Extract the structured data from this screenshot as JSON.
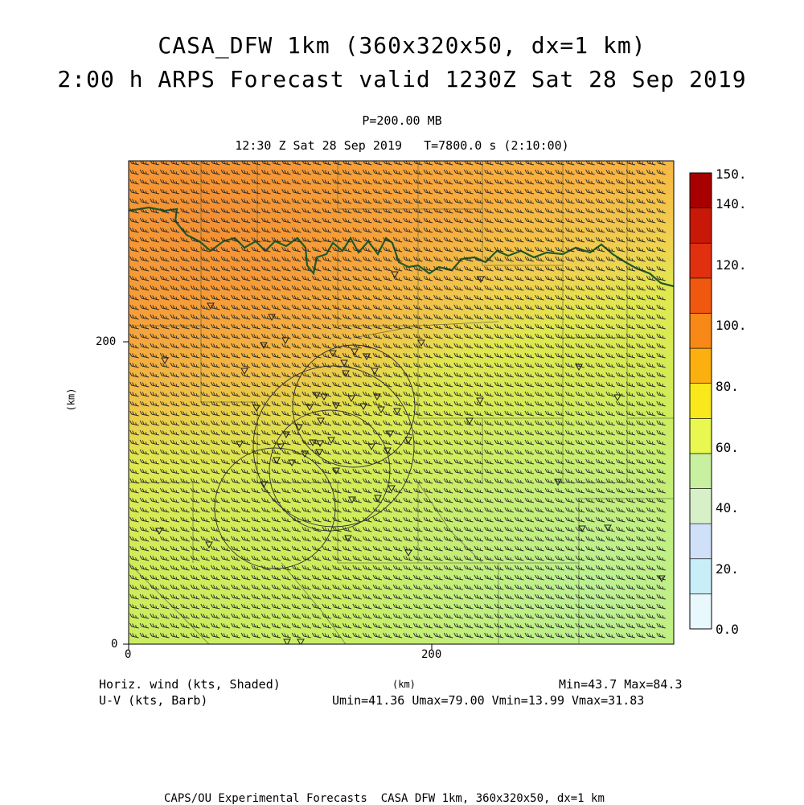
{
  "title": {
    "line1": "CASA_DFW 1km (360x320x50, dx=1 km)",
    "line2": "2:00 h ARPS Forecast valid 1230Z Sat 28 Sep 2019"
  },
  "subtitle": {
    "pressure": "P=200.00 MB",
    "time": "12:30 Z Sat 28 Sep 2019   T=7800.0 s (2:10:00)"
  },
  "axes": {
    "x_ticks": [
      "0",
      "200"
    ],
    "y_ticks": [
      "0",
      "200"
    ],
    "x_label": "(km)",
    "y_label": "(km)"
  },
  "colorbar": {
    "labels": [
      "150.",
      "140.",
      "120.",
      "100.",
      "80.",
      "60.",
      "40.",
      "20.",
      "0.0"
    ],
    "colors": [
      "#e8f8fc",
      "#c8eef8",
      "#cfe0f8",
      "#d8f0c8",
      "#c8f0a0",
      "#e8f850",
      "#f8e81c",
      "#fcb010",
      "#f88818",
      "#f05810",
      "#e03010",
      "#c81808",
      "#a80000"
    ]
  },
  "legend": {
    "left1": "Horiz. wind (kts, Shaded)",
    "left2": "U-V (kts, Barb)",
    "right1": "Min=43.7 Max=84.3",
    "right2": "Umin=41.36 Umax=79.00 Vmin=13.99 Vmax=31.83"
  },
  "footer": "CAPS/OU Experimental Forecasts  CASA DFW 1km, 360x320x50, dx=1 km",
  "field": {
    "variable": "Horizontal wind speed at 200 mb",
    "units": "kts",
    "min": 43.7,
    "max": 84.3
  }
}
